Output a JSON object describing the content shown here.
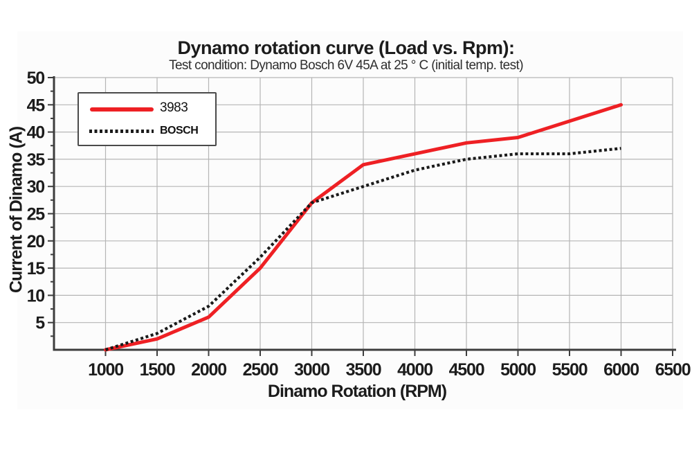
{
  "page": {
    "background": "#ffffff"
  },
  "chart_data": {
    "type": "line",
    "title": "Dynamo rotation curve (Load vs. Rpm):",
    "subtitle": "Test condition: Dynamo Bosch 6V 45A at 25 ° C (initial temp. test)",
    "xlabel": "Dinamo Rotation (RPM)",
    "ylabel": "Current of Dinamo (A)",
    "x": [
      1000,
      1500,
      2000,
      2500,
      3000,
      3500,
      4000,
      4500,
      5000,
      5500,
      6000
    ],
    "series": [
      {
        "name": "3983",
        "style": "solid",
        "color": "#ee2024",
        "values": [
          0,
          2,
          6,
          15,
          27,
          34,
          36,
          38,
          39,
          42,
          45
        ]
      },
      {
        "name": "BOSCH",
        "style": "dotted",
        "color": "#1a1a1a",
        "values": [
          0,
          3,
          8,
          17,
          27,
          30,
          33,
          35,
          36,
          36,
          37
        ]
      }
    ],
    "xlim": [
      500,
      6500
    ],
    "ylim": [
      0,
      50
    ],
    "xticks": [
      1000,
      1500,
      2000,
      2500,
      3000,
      3500,
      4000,
      4500,
      5000,
      5500,
      6000,
      6500
    ],
    "yticks": [
      5,
      10,
      15,
      20,
      25,
      30,
      35,
      40,
      45,
      50
    ],
    "y_minor_step": 2.5,
    "grid": true,
    "grid_color": "#b5b5b5",
    "axis_color": "#3d3d3d",
    "text_color": "#1c1c1c",
    "legend_position": "top-left-inside"
  }
}
